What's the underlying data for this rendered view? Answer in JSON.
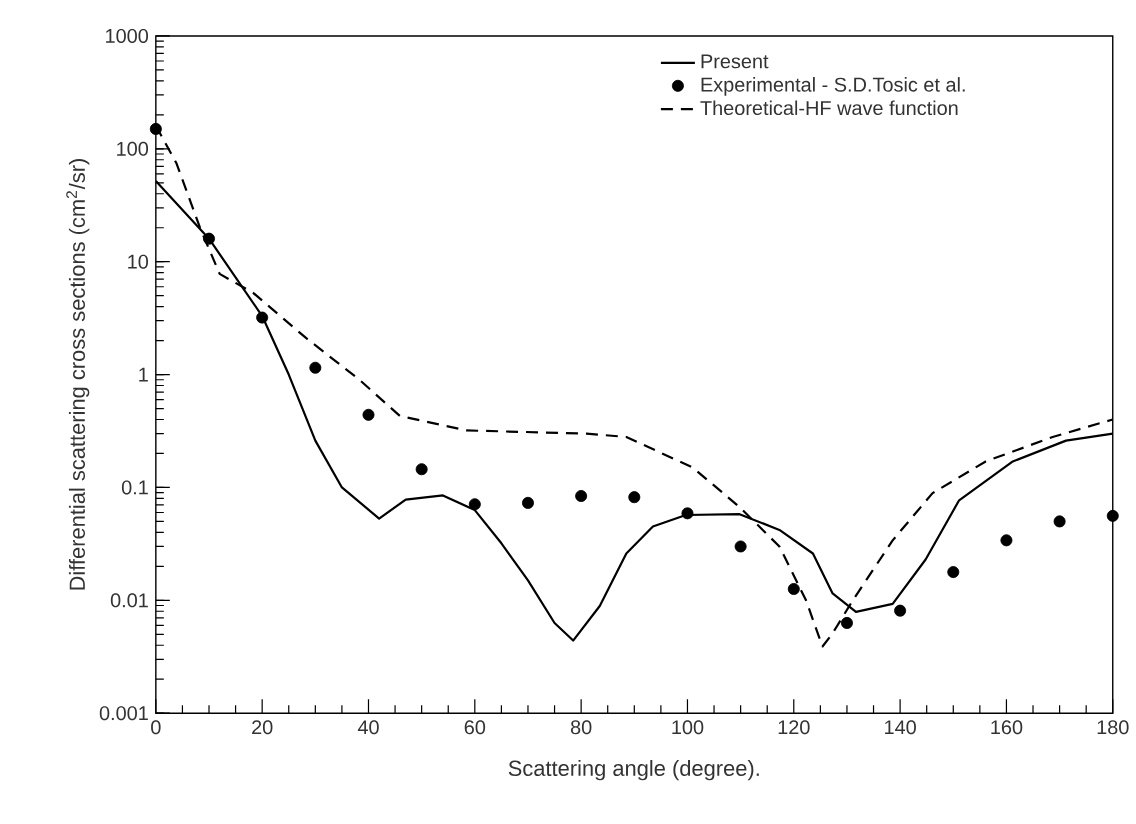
{
  "chart_data": {
    "type": "line",
    "xlabel": "Scattering angle (degree).",
    "ylabel": "Differential scattering cross sections (cm$^{2}$/sr)",
    "log": "y",
    "xlim": [
      0,
      180
    ],
    "ylim": [
      0.001,
      1000
    ],
    "xticks": [
      0,
      20,
      40,
      60,
      80,
      100,
      120,
      140,
      160,
      180
    ],
    "yticks": [
      0.001,
      0.01,
      0.1,
      1,
      10,
      100,
      1000
    ],
    "legend": "top right",
    "grid": false,
    "series": [
      {
        "name": "Present",
        "line_style": "solid",
        "marker": "none",
        "color": "#000000",
        "x": [
          0,
          10,
          20,
          25,
          30,
          35,
          42,
          47,
          54,
          60,
          65,
          70,
          75,
          78.5,
          83.5,
          88.5,
          93.5,
          99.7,
          109.8,
          117.3,
          123.6,
          127.3,
          131.7,
          138.6,
          144.8,
          151.1,
          161.2,
          171.2,
          180
        ],
        "values": [
          52,
          16,
          3.3,
          1.0,
          0.26,
          0.1,
          0.053,
          0.078,
          0.085,
          0.063,
          0.032,
          0.015,
          0.0063,
          0.0044,
          0.0089,
          0.026,
          0.045,
          0.057,
          0.058,
          0.042,
          0.026,
          0.0115,
          0.0079,
          0.0093,
          0.023,
          0.077,
          0.17,
          0.26,
          0.3
        ]
      },
      {
        "name": "Experimental - S.D.Tosic et al.",
        "type": "scatter",
        "marker": "circle",
        "color": "#000000",
        "x": [
          0,
          10,
          20,
          30,
          40,
          50,
          60,
          70,
          80,
          90,
          100,
          110,
          120,
          130,
          140,
          150,
          160,
          170,
          180
        ],
        "values": [
          150,
          16,
          3.2,
          1.15,
          0.44,
          0.145,
          0.071,
          0.073,
          0.084,
          0.082,
          0.059,
          0.03,
          0.0126,
          0.0063,
          0.0081,
          0.0178,
          0.034,
          0.05,
          0.056
        ]
      },
      {
        "name": "Theoretical-HF wave function",
        "type": "line",
        "line_style": "dashed",
        "marker": "none",
        "color": "#000000",
        "x": [
          0,
          3.9,
          8.3,
          12,
          18.3,
          28.3,
          38.3,
          45.9,
          58.4,
          81,
          88.5,
          101,
          109.8,
          117.3,
          122.3,
          125.4,
          127.3,
          131.1,
          138.6,
          146.1,
          156.1,
          168.7,
          180
        ],
        "values": [
          160,
          74,
          20,
          7.8,
          5.3,
          2.1,
          0.9,
          0.43,
          0.32,
          0.3,
          0.28,
          0.15,
          0.067,
          0.03,
          0.01,
          0.0039,
          0.0051,
          0.01,
          0.034,
          0.089,
          0.17,
          0.28,
          0.4
        ]
      }
    ]
  }
}
